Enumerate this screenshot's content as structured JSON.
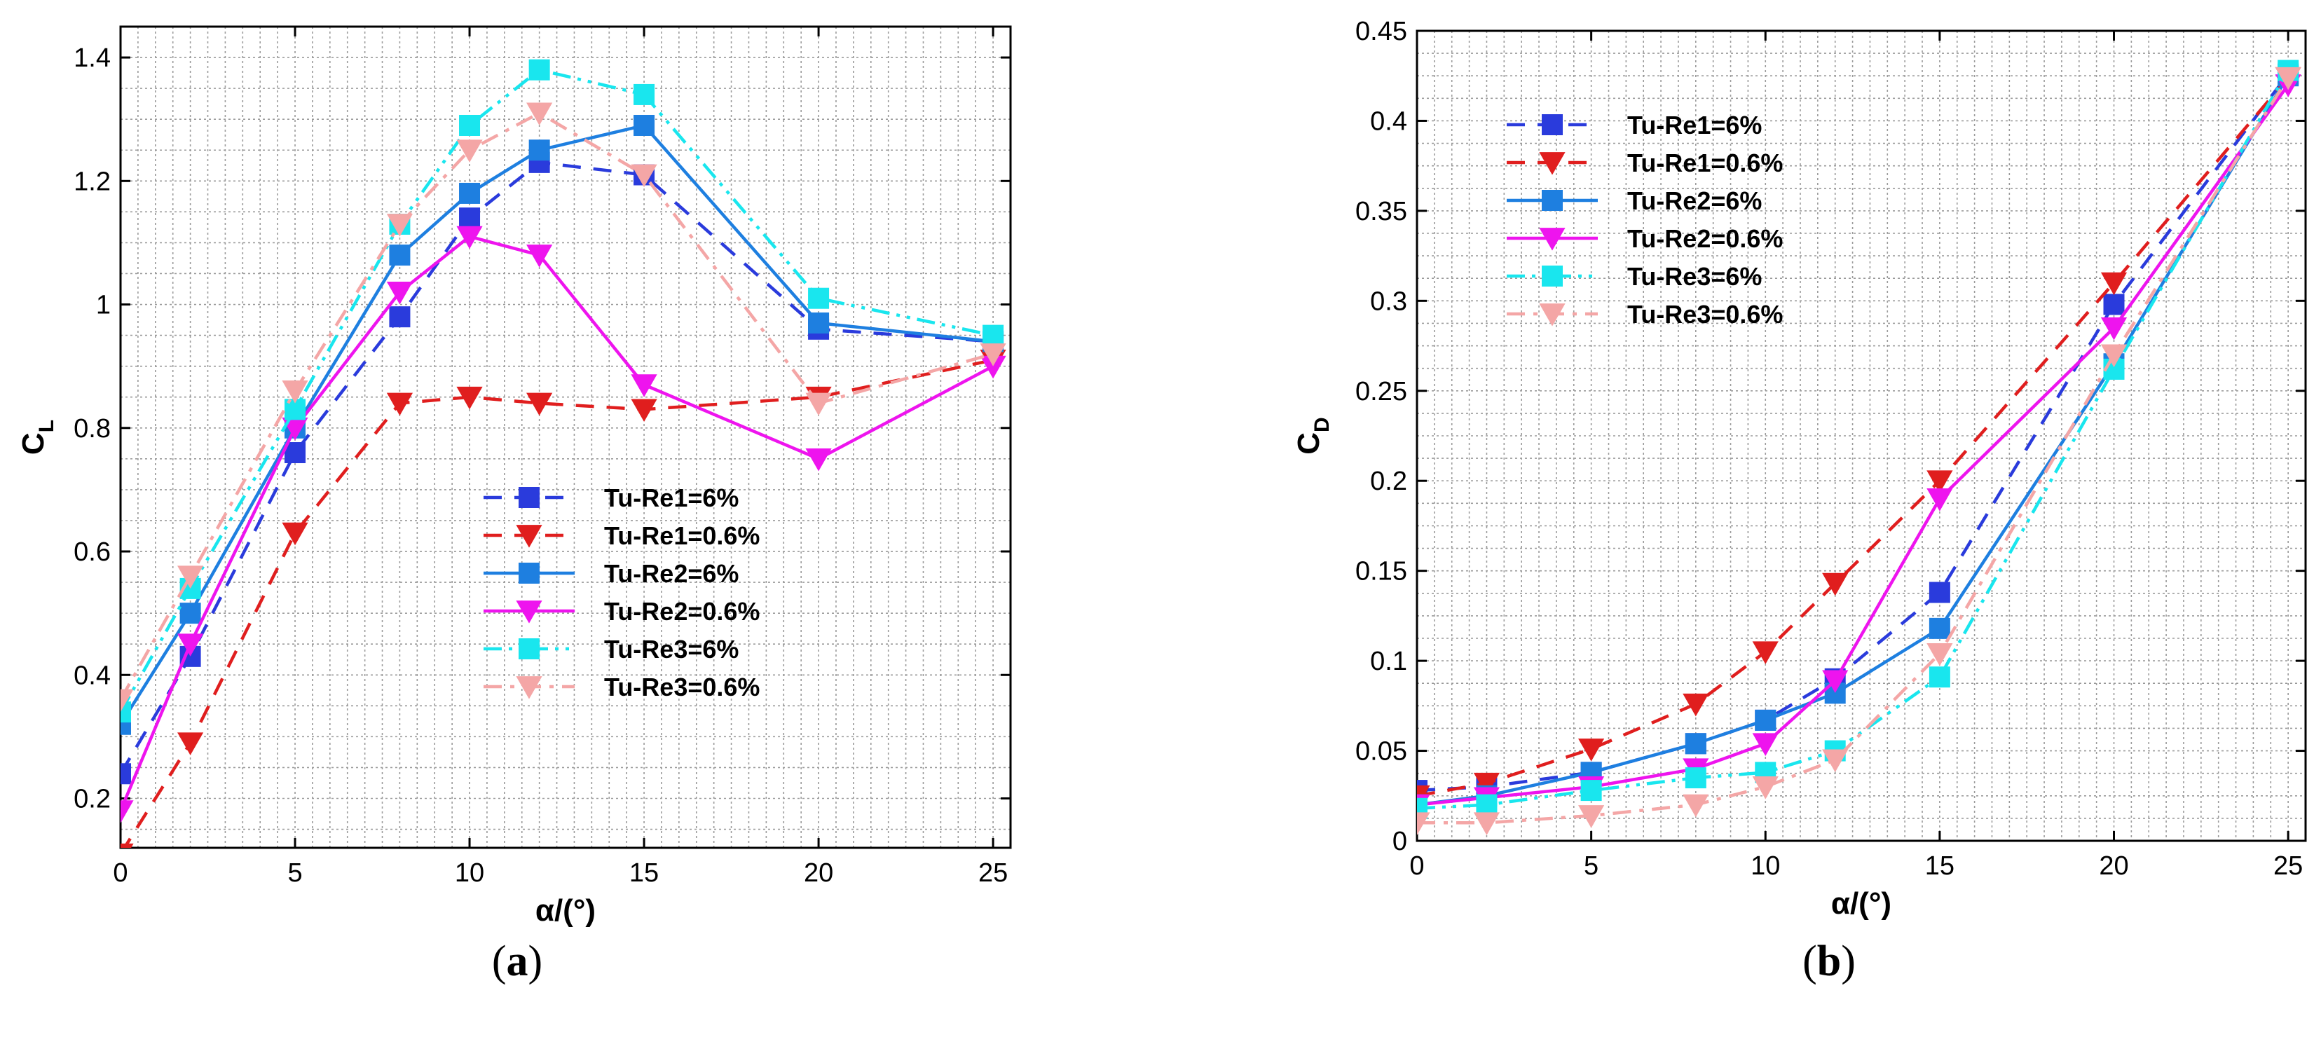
{
  "chart_data": [
    {
      "type": "line",
      "panel_label": "a",
      "xlabel": "α/(°)",
      "ylabel": "C",
      "ylabel_sub": "L",
      "xlim": [
        0,
        25.5
      ],
      "ylim": [
        0.12,
        1.45
      ],
      "xticks": [
        0,
        5,
        10,
        15,
        20,
        25
      ],
      "xtick_labels": [
        "0",
        "5",
        "10",
        "15",
        "20",
        "25"
      ],
      "yticks": [
        0.2,
        0.4,
        0.6,
        0.8,
        1.0,
        1.2,
        1.4
      ],
      "ytick_labels": [
        "0.2",
        "0.4",
        "0.6",
        "0.8",
        "1",
        "1.2",
        "1.4"
      ],
      "grid": true,
      "legend_position": "lower-right",
      "x": [
        0,
        2,
        5,
        8,
        10,
        12,
        15,
        20,
        25
      ],
      "series": [
        {
          "name": "Tu-Re1=6%",
          "color": "#2a3bdc",
          "line": "dash",
          "marker": "square",
          "values": [
            0.24,
            0.43,
            0.76,
            0.98,
            1.14,
            1.23,
            1.21,
            0.96,
            0.94
          ]
        },
        {
          "name": "Tu-Re1=0.6%",
          "color": "#e01e1e",
          "line": "dash",
          "marker": "triangle-down",
          "values": [
            0.11,
            0.29,
            0.63,
            0.84,
            0.85,
            0.84,
            0.83,
            0.85,
            0.91
          ]
        },
        {
          "name": "Tu-Re2=6%",
          "color": "#1e7fe0",
          "line": "solid",
          "marker": "square",
          "values": [
            0.32,
            0.5,
            0.8,
            1.08,
            1.18,
            1.25,
            1.29,
            0.97,
            0.94
          ]
        },
        {
          "name": "Tu-Re2=0.6%",
          "color": "#ee14ee",
          "line": "solid",
          "marker": "triangle-down",
          "values": [
            0.18,
            0.45,
            0.8,
            1.02,
            1.11,
            1.08,
            0.87,
            0.75,
            0.9
          ]
        },
        {
          "name": "Tu-Re3=6%",
          "color": "#19e6ee",
          "line": "dashdotdot",
          "marker": "square",
          "values": [
            0.34,
            0.54,
            0.83,
            1.13,
            1.29,
            1.38,
            1.34,
            1.01,
            0.95
          ]
        },
        {
          "name": "Tu-Re3=0.6%",
          "color": "#f4a6a6",
          "line": "dashdot",
          "marker": "triangle-down",
          "values": [
            0.36,
            0.56,
            0.86,
            1.13,
            1.25,
            1.31,
            1.21,
            0.84,
            0.92
          ]
        }
      ]
    },
    {
      "type": "line",
      "panel_label": "b",
      "xlabel": "α/(°)",
      "ylabel": "C",
      "ylabel_sub": "D",
      "xlim": [
        0,
        25.5
      ],
      "ylim": [
        0,
        0.45
      ],
      "xticks": [
        0,
        5,
        10,
        15,
        20,
        25
      ],
      "xtick_labels": [
        "0",
        "5",
        "10",
        "15",
        "20",
        "25"
      ],
      "yticks": [
        0,
        0.05,
        0.1,
        0.15,
        0.2,
        0.25,
        0.3,
        0.35,
        0.4,
        0.45
      ],
      "ytick_labels": [
        "0",
        "0.05",
        "0.1",
        "0.15",
        "0.2",
        "0.25",
        "0.3",
        "0.35",
        "0.4",
        "0.45"
      ],
      "grid": true,
      "legend_position": "top-left",
      "x": [
        0,
        2,
        5,
        8,
        10,
        12,
        15,
        20,
        25
      ],
      "series": [
        {
          "name": "Tu-Re1=6%",
          "color": "#2a3bdc",
          "line": "dash",
          "marker": "square",
          "values": [
            0.028,
            0.03,
            0.038,
            0.054,
            0.067,
            0.09,
            0.138,
            0.298,
            0.426
          ]
        },
        {
          "name": "Tu-Re1=0.6%",
          "color": "#e01e1e",
          "line": "dash",
          "marker": "triangle-down",
          "values": [
            0.025,
            0.032,
            0.051,
            0.076,
            0.105,
            0.143,
            0.2,
            0.31,
            0.424
          ]
        },
        {
          "name": "Tu-Re2=6%",
          "color": "#1e7fe0",
          "line": "solid",
          "marker": "square",
          "values": [
            0.02,
            0.025,
            0.038,
            0.054,
            0.067,
            0.082,
            0.118,
            0.265,
            0.425
          ]
        },
        {
          "name": "Tu-Re2=0.6%",
          "color": "#ee14ee",
          "line": "solid",
          "marker": "triangle-down",
          "values": [
            0.02,
            0.024,
            0.03,
            0.04,
            0.054,
            0.089,
            0.19,
            0.285,
            0.42
          ]
        },
        {
          "name": "Tu-Re3=6%",
          "color": "#19e6ee",
          "line": "dashdotdot",
          "marker": "square",
          "values": [
            0.018,
            0.02,
            0.028,
            0.035,
            0.038,
            0.05,
            0.091,
            0.262,
            0.428
          ]
        },
        {
          "name": "Tu-Re3=0.6%",
          "color": "#f4a6a6",
          "line": "dashdot",
          "marker": "triangle-down",
          "values": [
            0.01,
            0.01,
            0.014,
            0.02,
            0.03,
            0.045,
            0.104,
            0.27,
            0.424
          ]
        }
      ]
    }
  ]
}
